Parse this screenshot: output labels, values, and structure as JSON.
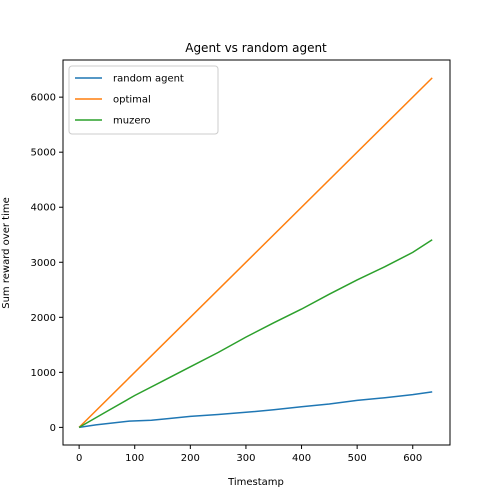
{
  "chart_data": {
    "type": "line",
    "title": "Agent vs random agent",
    "xlabel": "Timestamp",
    "ylabel": "Sum reward over time",
    "xlim": [
      -29,
      667
    ],
    "ylim": [
      -320,
      6675
    ],
    "xticks": [
      0,
      100,
      200,
      300,
      400,
      500,
      600
    ],
    "yticks": [
      0,
      1000,
      2000,
      3000,
      4000,
      5000,
      6000
    ],
    "grid": false,
    "legend_position": "top-left",
    "series": [
      {
        "name": "random agent",
        "color": "#1f77b4",
        "points": [
          [
            0,
            0
          ],
          [
            30,
            45
          ],
          [
            60,
            80
          ],
          [
            90,
            115
          ],
          [
            130,
            130
          ],
          [
            160,
            160
          ],
          [
            200,
            200
          ],
          [
            250,
            235
          ],
          [
            300,
            275
          ],
          [
            350,
            320
          ],
          [
            400,
            375
          ],
          [
            450,
            425
          ],
          [
            500,
            490
          ],
          [
            550,
            540
          ],
          [
            600,
            595
          ],
          [
            635,
            645
          ]
        ]
      },
      {
        "name": "optimal",
        "color": "#ff7f0e",
        "points": [
          [
            0,
            0
          ],
          [
            635,
            6350
          ]
        ]
      },
      {
        "name": "muzero",
        "color": "#2ca02c",
        "points": [
          [
            0,
            0
          ],
          [
            50,
            290
          ],
          [
            100,
            580
          ],
          [
            150,
            840
          ],
          [
            200,
            1100
          ],
          [
            250,
            1360
          ],
          [
            300,
            1640
          ],
          [
            350,
            1900
          ],
          [
            400,
            2150
          ],
          [
            450,
            2420
          ],
          [
            500,
            2680
          ],
          [
            550,
            2920
          ],
          [
            600,
            3180
          ],
          [
            635,
            3410
          ]
        ]
      }
    ]
  }
}
